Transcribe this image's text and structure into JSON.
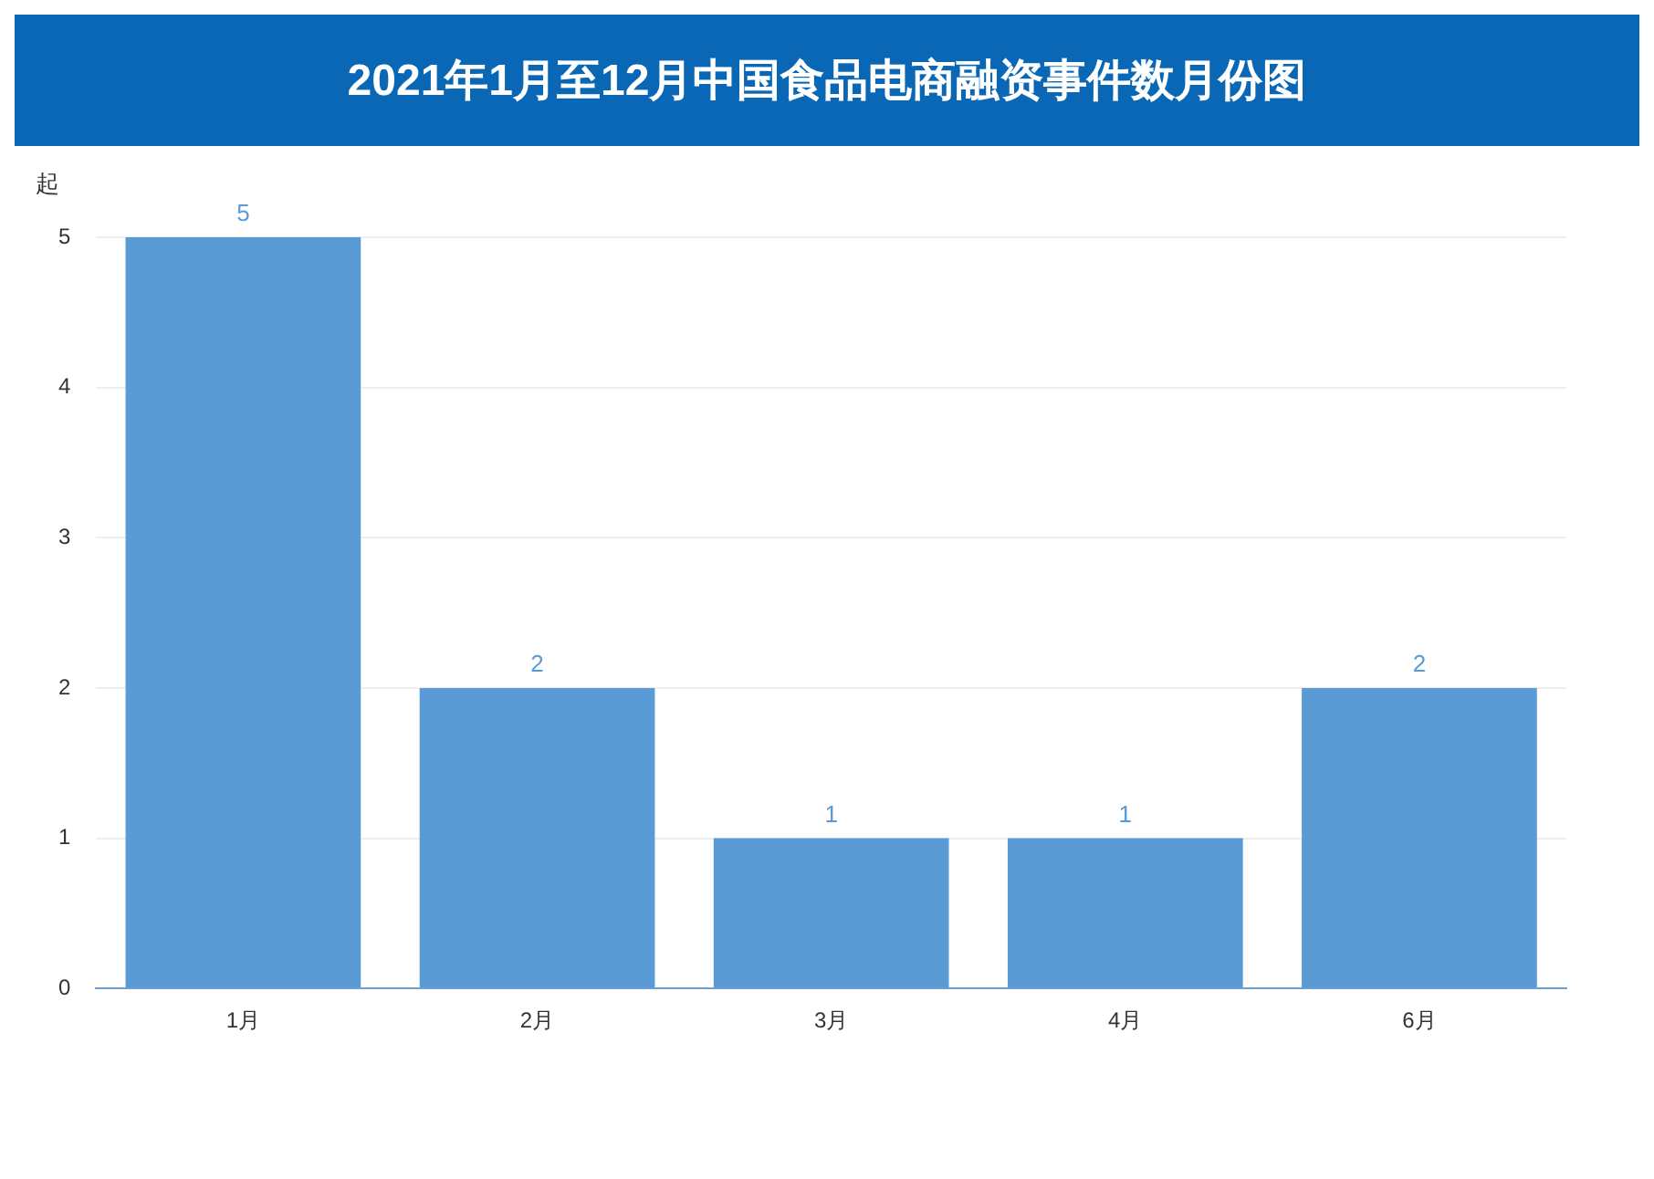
{
  "chart_data": {
    "type": "bar",
    "title": "2021年1月至12月中国食品电商融资事件数月份图",
    "ylabel": "起",
    "categories": [
      "1月",
      "2月",
      "3月",
      "4月",
      "6月"
    ],
    "values": [
      5,
      2,
      1,
      1,
      2
    ],
    "color": "#5b9bd5",
    "ylim": [
      0,
      5
    ],
    "yticks": [
      0,
      1,
      2,
      3,
      4,
      5
    ],
    "grid": "y",
    "data_labels": true,
    "legend": false
  }
}
